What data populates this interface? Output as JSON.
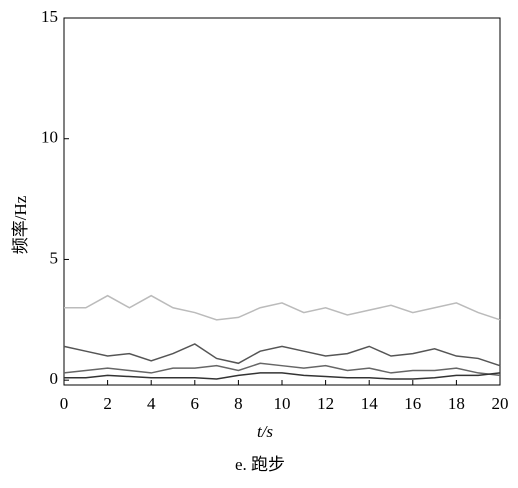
{
  "chart_data": {
    "type": "line",
    "ylabel": "频率/Hz",
    "xlabel": "t/s",
    "caption": "e. 跑步",
    "x": [
      0,
      1,
      2,
      3,
      4,
      5,
      6,
      7,
      8,
      9,
      10,
      11,
      12,
      13,
      14,
      15,
      16,
      17,
      18,
      19,
      20
    ],
    "series": [
      {
        "color": "#bbbbbb",
        "values": [
          3,
          3,
          3.5,
          3,
          3.5,
          3,
          2.8,
          2.5,
          2.6,
          3,
          3.2,
          2.8,
          3,
          2.7,
          2.9,
          3.1,
          2.8,
          3,
          3.2,
          2.8,
          2.5
        ]
      },
      {
        "color": "#555555",
        "values": [
          1.4,
          1.2,
          1.0,
          1.1,
          0.8,
          1.1,
          1.5,
          0.9,
          0.7,
          1.2,
          1.4,
          1.2,
          1.0,
          1.1,
          1.4,
          1.0,
          1.1,
          1.3,
          1.0,
          0.9,
          0.6
        ]
      },
      {
        "color": "#666666",
        "values": [
          0.3,
          0.4,
          0.5,
          0.4,
          0.3,
          0.5,
          0.5,
          0.6,
          0.4,
          0.7,
          0.6,
          0.5,
          0.6,
          0.4,
          0.5,
          0.3,
          0.4,
          0.4,
          0.5,
          0.3,
          0.2
        ]
      },
      {
        "color": "#333333",
        "values": [
          0.1,
          0.1,
          0.2,
          0.15,
          0.1,
          0.1,
          0.1,
          0.05,
          0.2,
          0.3,
          0.3,
          0.2,
          0.15,
          0.1,
          0.1,
          0.05,
          0.05,
          0.1,
          0.2,
          0.2,
          0.3
        ]
      }
    ],
    "xlim": [
      0,
      20
    ],
    "ylim": [
      -0.2,
      15
    ],
    "xticks": [
      0,
      2,
      4,
      6,
      8,
      10,
      12,
      14,
      16,
      18,
      20
    ],
    "yticks": [
      0,
      5,
      10,
      15
    ]
  }
}
